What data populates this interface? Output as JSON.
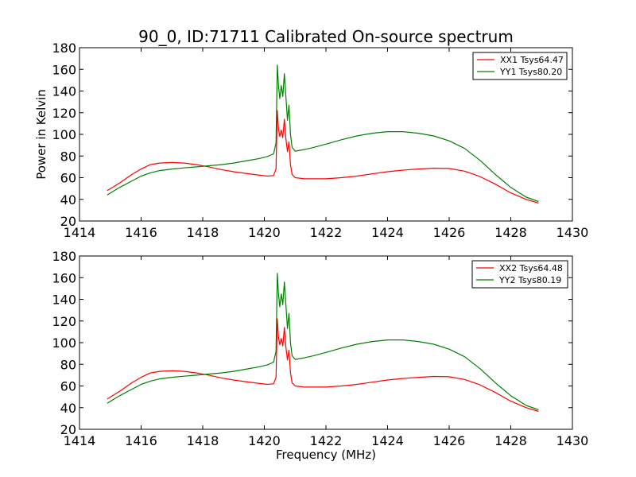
{
  "figure": {
    "title": "90_0, ID:71711 Calibrated On-source spectrum",
    "xlabel": "Frequency (MHz)",
    "ylabel": "Power in Kelvin"
  },
  "colors": {
    "xx": "#ff0000",
    "yy": "#008000",
    "axes": "#000000",
    "background": "#ffffff"
  },
  "chart_data": [
    {
      "type": "line",
      "title": "90_0, ID:71711 Calibrated On-source spectrum",
      "xlabel": "",
      "ylabel": "Power in Kelvin",
      "xlim": [
        1414,
        1430
      ],
      "ylim": [
        20,
        180
      ],
      "xticks": [
        "1414",
        "1416",
        "1418",
        "1420",
        "1422",
        "1424",
        "1426",
        "1428",
        "1430"
      ],
      "yticks": [
        "20",
        "40",
        "60",
        "80",
        "100",
        "120",
        "140",
        "160",
        "180"
      ],
      "legend_position": "top-right",
      "series": [
        {
          "name": "XX1 Tsys64.47",
          "color": "#ff0000",
          "x": [
            1414.9,
            1415.3,
            1415.7,
            1416.0,
            1416.3,
            1416.6,
            1417.0,
            1417.4,
            1417.8,
            1418.2,
            1418.6,
            1419.0,
            1419.4,
            1419.8,
            1420.1,
            1420.3,
            1420.38,
            1420.42,
            1420.46,
            1420.5,
            1420.55,
            1420.6,
            1420.65,
            1420.7,
            1420.75,
            1420.8,
            1420.85,
            1420.9,
            1421.0,
            1421.3,
            1421.6,
            1422.0,
            1422.5,
            1423.0,
            1423.5,
            1424.0,
            1424.5,
            1425.0,
            1425.5,
            1426.0,
            1426.5,
            1427.0,
            1427.5,
            1428.0,
            1428.5,
            1428.9
          ],
          "y": [
            48,
            55,
            63,
            68,
            72,
            73.5,
            74,
            73.5,
            72,
            70,
            67.5,
            65.5,
            64,
            62.5,
            61.5,
            62,
            68,
            122,
            105,
            98,
            104,
            97,
            114,
            96,
            84,
            93,
            72,
            63,
            60,
            59,
            59,
            59,
            60,
            61.5,
            63.5,
            65.5,
            67,
            68,
            68.8,
            68.5,
            66,
            61,
            54,
            46,
            40,
            36.5
          ]
        },
        {
          "name": "YY1 Tsys80.20",
          "color": "#008000",
          "x": [
            1414.9,
            1415.3,
            1415.7,
            1416.0,
            1416.3,
            1416.6,
            1417.0,
            1417.4,
            1417.8,
            1418.2,
            1418.6,
            1419.0,
            1419.4,
            1419.8,
            1420.1,
            1420.3,
            1420.38,
            1420.42,
            1420.46,
            1420.5,
            1420.55,
            1420.6,
            1420.65,
            1420.7,
            1420.75,
            1420.8,
            1420.85,
            1420.9,
            1421.0,
            1421.3,
            1421.6,
            1422.0,
            1422.5,
            1423.0,
            1423.5,
            1424.0,
            1424.5,
            1425.0,
            1425.5,
            1426.0,
            1426.5,
            1427.0,
            1427.5,
            1428.0,
            1428.5,
            1428.9
          ],
          "y": [
            44,
            51,
            57,
            61.5,
            64.5,
            66.5,
            68,
            69,
            70,
            71,
            72,
            73.5,
            75.5,
            77.5,
            79.5,
            82,
            92,
            164,
            145,
            133,
            145,
            135,
            156,
            135,
            113,
            127,
            100,
            88,
            84.5,
            86,
            88,
            91,
            95,
            98.5,
            101,
            102.5,
            102.5,
            101,
            98.5,
            94,
            87,
            76,
            63,
            51,
            42,
            38
          ]
        }
      ]
    },
    {
      "type": "line",
      "title": "",
      "xlabel": "Frequency (MHz)",
      "ylabel": "",
      "xlim": [
        1414,
        1430
      ],
      "ylim": [
        20,
        180
      ],
      "xticks": [
        "1414",
        "1416",
        "1418",
        "1420",
        "1422",
        "1424",
        "1426",
        "1428",
        "1430"
      ],
      "yticks": [
        "20",
        "40",
        "60",
        "80",
        "100",
        "120",
        "140",
        "160",
        "180"
      ],
      "legend_position": "top-right",
      "series": [
        {
          "name": "XX2 Tsys64.48",
          "color": "#ff0000",
          "x": [
            1414.9,
            1415.3,
            1415.7,
            1416.0,
            1416.3,
            1416.6,
            1417.0,
            1417.4,
            1417.8,
            1418.2,
            1418.6,
            1419.0,
            1419.4,
            1419.8,
            1420.1,
            1420.3,
            1420.38,
            1420.42,
            1420.46,
            1420.5,
            1420.55,
            1420.6,
            1420.65,
            1420.7,
            1420.75,
            1420.8,
            1420.85,
            1420.9,
            1421.0,
            1421.3,
            1421.6,
            1422.0,
            1422.5,
            1423.0,
            1423.5,
            1424.0,
            1424.5,
            1425.0,
            1425.5,
            1426.0,
            1426.5,
            1427.0,
            1427.5,
            1428.0,
            1428.5,
            1428.9
          ],
          "y": [
            48,
            55,
            63,
            68,
            72,
            73.5,
            74,
            73.5,
            72,
            70,
            67.5,
            65.5,
            64,
            62.5,
            61.5,
            62,
            68,
            122,
            105,
            98,
            104,
            97,
            114,
            96,
            84,
            93,
            72,
            63,
            60,
            59,
            59,
            59,
            60,
            61.5,
            63.5,
            65.5,
            67,
            68,
            68.8,
            68.5,
            66,
            61,
            54,
            46,
            40,
            36.5
          ]
        },
        {
          "name": "YY2 Tsys80.19",
          "color": "#008000",
          "x": [
            1414.9,
            1415.3,
            1415.7,
            1416.0,
            1416.3,
            1416.6,
            1417.0,
            1417.4,
            1417.8,
            1418.2,
            1418.6,
            1419.0,
            1419.4,
            1419.8,
            1420.1,
            1420.3,
            1420.38,
            1420.42,
            1420.46,
            1420.5,
            1420.55,
            1420.6,
            1420.65,
            1420.7,
            1420.75,
            1420.8,
            1420.85,
            1420.9,
            1421.0,
            1421.3,
            1421.6,
            1422.0,
            1422.5,
            1423.0,
            1423.5,
            1424.0,
            1424.5,
            1425.0,
            1425.5,
            1426.0,
            1426.5,
            1427.0,
            1427.5,
            1428.0,
            1428.5,
            1428.9
          ],
          "y": [
            44,
            51,
            57,
            61.5,
            64.5,
            66.5,
            68,
            69,
            70,
            71,
            72,
            73.5,
            75.5,
            77.5,
            79.5,
            82,
            92,
            164,
            145,
            133,
            145,
            135,
            156,
            135,
            113,
            127,
            100,
            88,
            84.5,
            86,
            88,
            91,
            95,
            98.5,
            101,
            102.5,
            102.5,
            101,
            98.5,
            94,
            87,
            76,
            63,
            51,
            42,
            38
          ]
        }
      ]
    }
  ]
}
